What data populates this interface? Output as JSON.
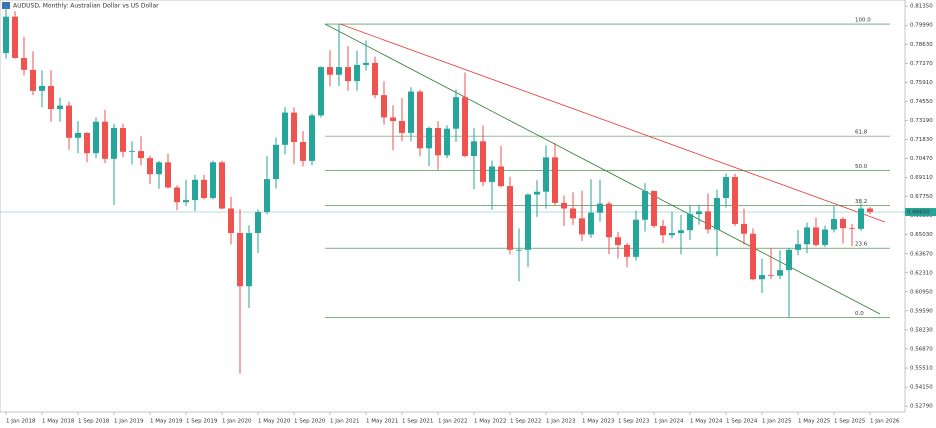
{
  "chart_data": {
    "type": "candlestick",
    "title": "AUDUSD, Monthly: Australian Dollar vs US Dollar",
    "up_color": "#26a69a",
    "down_color": "#ef5350",
    "categories": [
      "1 Jan 2018",
      null,
      null,
      null,
      "1 May 2018",
      null,
      null,
      null,
      "1 Sep 2018",
      null,
      null,
      null,
      "1 Jan 2019",
      null,
      null,
      null,
      "1 May 2019",
      null,
      null,
      null,
      "1 Sep 2019",
      null,
      null,
      null,
      "1 Jan 2020",
      null,
      null,
      null,
      "1 May 2020",
      null,
      null,
      null,
      "1 Sep 2020",
      null,
      null,
      null,
      "1 Jan 2021",
      null,
      null,
      null,
      "1 May 2021",
      null,
      null,
      null,
      "1 Sep 2021",
      null,
      null,
      null,
      "1 Jan 2022",
      null,
      null,
      null,
      "1 May 2022",
      null,
      null,
      null,
      "1 Sep 2022",
      null,
      null,
      null,
      "1 Jan 2023",
      null,
      null,
      null,
      "1 May 2023",
      null,
      null,
      null,
      "1 Sep 2023",
      null,
      null,
      null,
      "1 Jan 2024",
      null,
      null,
      null,
      "1 May 2024",
      null,
      null,
      null,
      "1 Sep 2024",
      null,
      null,
      null,
      "1 Jan 2025",
      null,
      null,
      null,
      "1 May 2025",
      null,
      null,
      null,
      "1 Sep 2025",
      null,
      null,
      null,
      "1 Jan 2026"
    ],
    "open": [
      0.78,
      0.806,
      0.7765,
      0.768,
      0.753,
      0.7565,
      0.74,
      0.7425,
      0.7195,
      0.723,
      0.7085,
      0.731,
      0.7045,
      0.7265,
      0.7095,
      0.71,
      0.705,
      0.6935,
      0.702,
      0.684,
      0.6735,
      0.675,
      0.6895,
      0.6765,
      0.702,
      0.669,
      0.6515,
      0.6135,
      0.6515,
      0.6665,
      0.69,
      0.7145,
      0.7375,
      0.7165,
      0.703,
      0.7355,
      0.77,
      0.7645,
      0.77,
      0.76,
      0.7715,
      0.773,
      0.75,
      0.734,
      0.7315,
      0.723,
      0.7525,
      0.712,
      0.7265,
      0.707,
      0.726,
      0.7485,
      0.7065,
      0.717,
      0.688,
      0.699,
      0.685,
      0.6395,
      0.6395,
      0.679,
      0.681,
      0.7055,
      0.673,
      0.669,
      0.662,
      0.6505,
      0.666,
      0.6725,
      0.6485,
      0.643,
      0.6345,
      0.661,
      0.6815,
      0.6565,
      0.65,
      0.6515,
      0.6535,
      0.665,
      0.667,
      0.654,
      0.6765,
      0.6915,
      0.658,
      0.651,
      0.6185,
      0.6215,
      0.621,
      0.625,
      0.6395,
      0.6435,
      0.6555,
      0.643,
      0.654,
      0.6615,
      0.655,
      0.6545,
      0.669
    ],
    "high": [
      0.8136,
      0.81,
      0.7917,
      0.7813,
      0.7677,
      0.7677,
      0.7484,
      0.7453,
      0.7315,
      0.7235,
      0.734,
      0.7395,
      0.7295,
      0.7295,
      0.717,
      0.7206,
      0.7069,
      0.703,
      0.7082,
      0.6855,
      0.6895,
      0.693,
      0.693,
      0.7032,
      0.7032,
      0.6774,
      0.6685,
      0.657,
      0.6684,
      0.7064,
      0.7197,
      0.7414,
      0.7413,
      0.7243,
      0.737,
      0.7705,
      0.782,
      0.8007,
      0.785,
      0.7817,
      0.7891,
      0.7775,
      0.7599,
      0.7427,
      0.7478,
      0.7556,
      0.7536,
      0.7277,
      0.7315,
      0.7285,
      0.754,
      0.7661,
      0.7266,
      0.7283,
      0.7033,
      0.7137,
      0.6917,
      0.6548,
      0.6798,
      0.6893,
      0.7142,
      0.7158,
      0.6783,
      0.6806,
      0.6818,
      0.69,
      0.6895,
      0.6738,
      0.6522,
      0.6445,
      0.6676,
      0.6871,
      0.682,
      0.661,
      0.6667,
      0.6644,
      0.6714,
      0.6714,
      0.6798,
      0.6824,
      0.6942,
      0.6937,
      0.6688,
      0.6549,
      0.6331,
      0.6409,
      0.6391,
      0.6409,
      0.6537,
      0.659,
      0.6625,
      0.6568,
      0.6707,
      0.6629,
      0.658,
      0.6727,
      0.67
    ],
    "low": [
      0.776,
      0.776,
      0.764,
      0.75,
      0.7413,
      0.731,
      0.731,
      0.711,
      0.7085,
      0.702,
      0.705,
      0.7015,
      0.6715,
      0.7055,
      0.7005,
      0.7,
      0.6865,
      0.683,
      0.6832,
      0.6677,
      0.6707,
      0.6671,
      0.6755,
      0.6755,
      0.6684,
      0.6433,
      0.551,
      0.598,
      0.6372,
      0.6648,
      0.6832,
      0.7077,
      0.7006,
      0.6991,
      0.7,
      0.734,
      0.7562,
      0.7564,
      0.753,
      0.7532,
      0.7675,
      0.7477,
      0.7289,
      0.7106,
      0.717,
      0.717,
      0.7063,
      0.6993,
      0.6967,
      0.705,
      0.7165,
      0.7055,
      0.6828,
      0.685,
      0.6681,
      0.6841,
      0.6363,
      0.617,
      0.6272,
      0.663,
      0.6688,
      0.6713,
      0.6564,
      0.6573,
      0.6458,
      0.648,
      0.6595,
      0.6364,
      0.6332,
      0.627,
      0.6318,
      0.6525,
      0.6551,
      0.6442,
      0.6477,
      0.6362,
      0.6465,
      0.6575,
      0.6512,
      0.6349,
      0.6696,
      0.6565,
      0.6433,
      0.6179,
      0.6088,
      0.6187,
      0.6186,
      0.5913,
      0.6356,
      0.6371,
      0.6419,
      0.6414,
      0.652,
      0.644,
      0.6421,
      0.653,
      0.665
    ],
    "close": [
      0.806,
      0.7765,
      0.768,
      0.753,
      0.7565,
      0.74,
      0.7425,
      0.7195,
      0.723,
      0.7085,
      0.731,
      0.7045,
      0.7265,
      0.7095,
      0.71,
      0.705,
      0.6935,
      0.702,
      0.684,
      0.6735,
      0.675,
      0.6895,
      0.6765,
      0.702,
      0.669,
      0.6515,
      0.6135,
      0.6515,
      0.6665,
      0.69,
      0.7145,
      0.7375,
      0.7165,
      0.703,
      0.7355,
      0.77,
      0.7645,
      0.77,
      0.76,
      0.7715,
      0.773,
      0.75,
      0.734,
      0.7315,
      0.723,
      0.7525,
      0.712,
      0.7265,
      0.707,
      0.726,
      0.7485,
      0.7065,
      0.717,
      0.688,
      0.699,
      0.685,
      0.6395,
      0.6395,
      0.679,
      0.681,
      0.7055,
      0.673,
      0.669,
      0.662,
      0.6505,
      0.666,
      0.6725,
      0.6485,
      0.643,
      0.6345,
      0.661,
      0.6815,
      0.6565,
      0.65,
      0.6515,
      0.6535,
      0.665,
      0.667,
      0.654,
      0.6765,
      0.6915,
      0.658,
      0.651,
      0.6185,
      0.6215,
      0.621,
      0.625,
      0.6395,
      0.6435,
      0.6555,
      0.643,
      0.654,
      0.6615,
      0.655,
      0.6545,
      0.669,
      0.6665
    ],
    "ylim": [
      0.5237,
      0.8179
    ],
    "yticks": [
      {
        "value": 0.8135,
        "label": "0.81350"
      },
      {
        "value": 0.7999,
        "label": "0.79990"
      },
      {
        "value": 0.7863,
        "label": "0.78630"
      },
      {
        "value": 0.7727,
        "label": "0.77270"
      },
      {
        "value": 0.7591,
        "label": "0.75910"
      },
      {
        "value": 0.7455,
        "label": "0.74550"
      },
      {
        "value": 0.7319,
        "label": "0.73190"
      },
      {
        "value": 0.7183,
        "label": "0.71830"
      },
      {
        "value": 0.7047,
        "label": "0.70470"
      },
      {
        "value": 0.6911,
        "label": "0.69110"
      },
      {
        "value": 0.6775,
        "label": "0.67750"
      },
      {
        "value": 0.6639,
        "label": "0.66390"
      },
      {
        "value": 0.6503,
        "label": "0.65030"
      },
      {
        "value": 0.6367,
        "label": "0.63670"
      },
      {
        "value": 0.6231,
        "label": "0.62310"
      },
      {
        "value": 0.6095,
        "label": "0.60950"
      },
      {
        "value": 0.5959,
        "label": "0.59590"
      },
      {
        "value": 0.5823,
        "label": "0.58230"
      },
      {
        "value": 0.5687,
        "label": "0.56870"
      },
      {
        "value": 0.5551,
        "label": "0.55510"
      },
      {
        "value": 0.5415,
        "label": "0.54150"
      },
      {
        "value": 0.5279,
        "label": "0.52790"
      }
    ],
    "last_price": 0.6665,
    "last_price_label": "0.66650",
    "last_price_color": "#26a69a",
    "fibonacci": {
      "color": "#2e7d32",
      "levels": [
        {
          "label": "100.0",
          "value": 0.8007
        },
        {
          "label": "61.8",
          "value": 0.7207
        },
        {
          "label": "50.0",
          "value": 0.696
        },
        {
          "label": "38.2",
          "value": 0.6713
        },
        {
          "label": "23.6",
          "value": 0.6407
        },
        {
          "label": "0.0",
          "value": 0.5913
        }
      ]
    }
  }
}
